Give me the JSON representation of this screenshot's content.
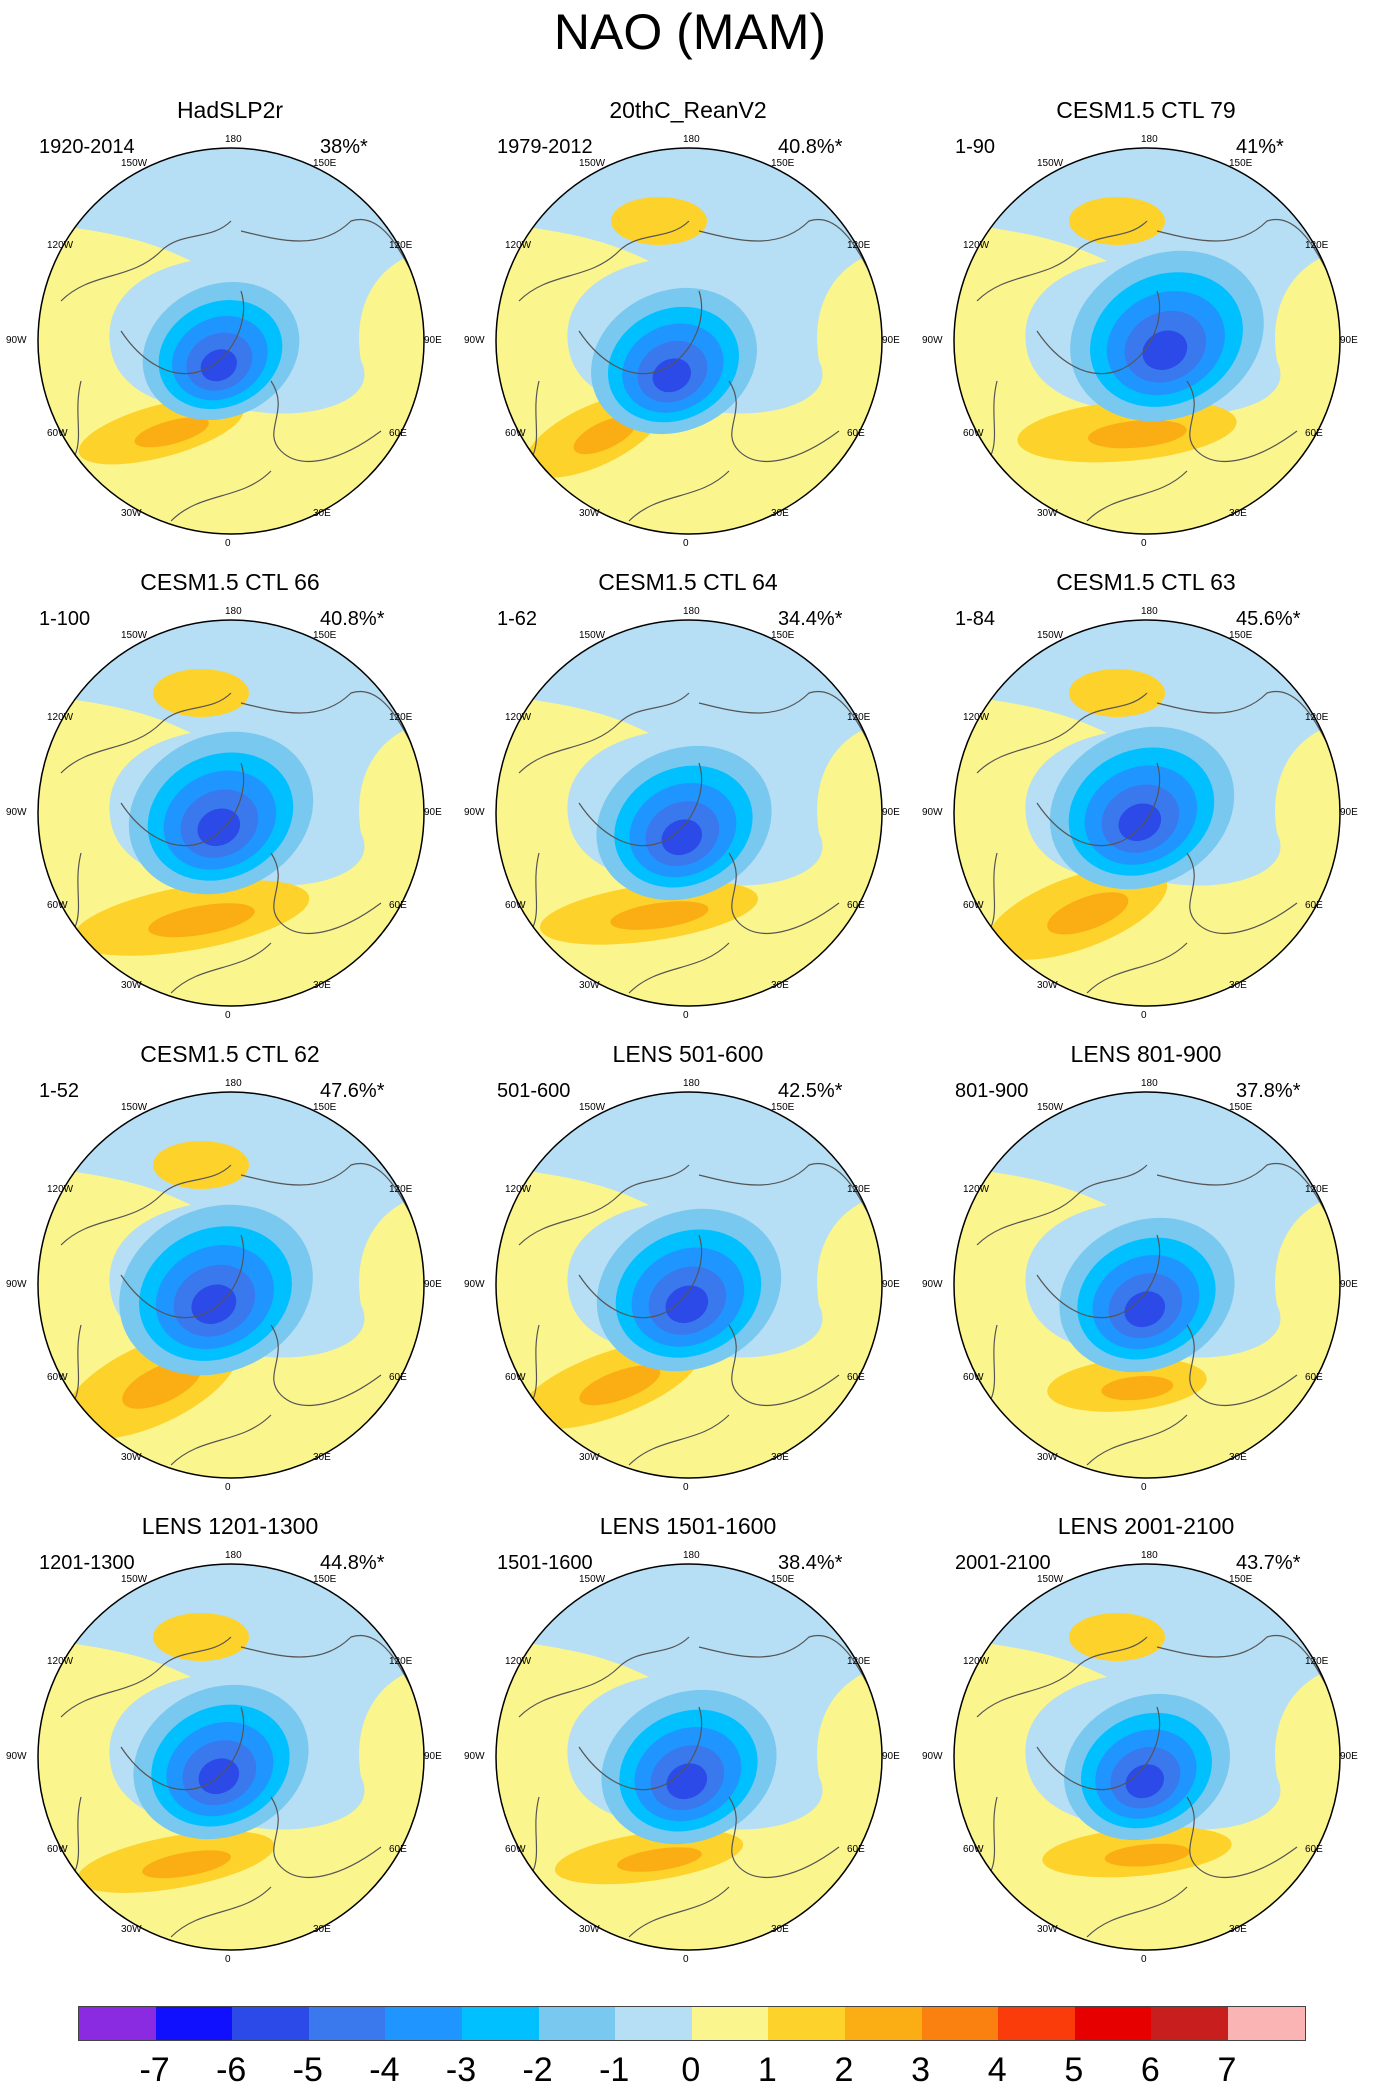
{
  "title": "NAO (MAM)",
  "lat_lon_labels": {
    "top": "180",
    "bottom": "0",
    "left": "90W",
    "right": "90E",
    "upper_left_1": "150W",
    "upper_left_2": "120W",
    "upper_right_1": "150E",
    "upper_right_2": "120E",
    "lower_left_1": "60W",
    "lower_left_2": "30W",
    "lower_right_1": "60E",
    "lower_right_2": "30E"
  },
  "panels": [
    {
      "title": "HadSLP2r",
      "period": "1920-2014",
      "variance": "38%*"
    },
    {
      "title": "20thC_ReanV2",
      "period": "1979-2012",
      "variance": "40.8%*"
    },
    {
      "title": "CESM1.5 CTL 79",
      "period": "1-90",
      "variance": "41%*"
    },
    {
      "title": "CESM1.5 CTL 66",
      "period": "1-100",
      "variance": "40.8%*"
    },
    {
      "title": "CESM1.5 CTL 64",
      "period": "1-62",
      "variance": "34.4%*"
    },
    {
      "title": "CESM1.5 CTL 63",
      "period": "1-84",
      "variance": "45.6%*"
    },
    {
      "title": "CESM1.5 CTL 62",
      "period": "1-52",
      "variance": "47.6%*"
    },
    {
      "title": "LENS 501-600",
      "period": "501-600",
      "variance": "42.5%*"
    },
    {
      "title": "LENS 801-900",
      "period": "801-900",
      "variance": "37.8%*"
    },
    {
      "title": "LENS 1201-1300",
      "period": "1201-1300",
      "variance": "44.8%*"
    },
    {
      "title": "LENS 1501-1600",
      "period": "1501-1600",
      "variance": "38.4%*"
    },
    {
      "title": "LENS 2001-2100",
      "period": "2001-2100",
      "variance": "43.7%*"
    }
  ],
  "colorbar": {
    "colors": [
      "#8a2be2",
      "#1010ff",
      "#2b4ae8",
      "#3a78ee",
      "#1f96ff",
      "#00c0ff",
      "#78c8f0",
      "#b6def4",
      "#fbf58e",
      "#fdd22a",
      "#fbad14",
      "#fa8010",
      "#fa3c0a",
      "#e60000",
      "#c81e1e",
      "#fab4b4"
    ],
    "labels": [
      "-7",
      "-6",
      "-5",
      "-4",
      "-3",
      "-2",
      "-1",
      "0",
      "1",
      "2",
      "3",
      "4",
      "5",
      "6",
      "7"
    ]
  }
}
